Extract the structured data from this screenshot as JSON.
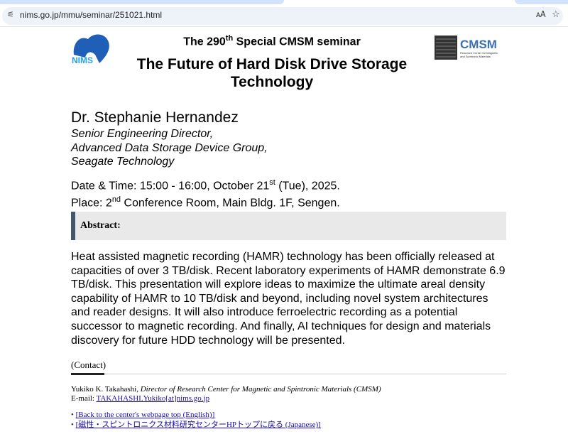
{
  "browser": {
    "url": "nims.go.jp/mmu/seminar/251021.html",
    "icons": [
      "tune-icon",
      "translate-icon",
      "star-icon"
    ]
  },
  "header": {
    "logo_left": "NIMS",
    "logo_right": "CMSM",
    "logo_right_sub": "Research Center for Magnetic and Spintronic Materials",
    "sub_pre": "The 290",
    "sub_sup": "th",
    "sub_post": " Special CMSM seminar",
    "title": "The Future of Hard Disk Drive Storage Technology"
  },
  "speaker": {
    "name": "Dr. Stephanie Hernandez",
    "affiliation": [
      "Senior Engineering Director,",
      "Advanced Data Storage Device Group,",
      "Seagate Technology"
    ]
  },
  "event": {
    "date_pre": "Date & Time: 15:00 - 16:00, October 21",
    "date_sup": "st",
    "date_post": " (Tue), 2025.",
    "place_pre": "Place: 2",
    "place_sup": "nd",
    "place_post": " Conference Room, Main Bldg. 1F, Sengen."
  },
  "abstract": {
    "heading": "Abstract:",
    "text": "Heat assisted magnetic recording (HAMR) technology has been officially released at capacities of over 3 TB/disk. Recent laboratory experiments of HAMR demonstrate 6.9 TB/disk. This presentation will explore ideas to maximize the ultimate areal density capability of HAMR to 10 TB/disk and beyond, including novel system architectures and reader designs. It will also introduce ferroelectric recording as a potential successor to magnetic recording. And finally, AI techniques for design and materials discovery for future HDD technology will be presented."
  },
  "contact": {
    "heading": "(Contact)",
    "name": "Yukiko K. Takahashi,",
    "role": " Director of Research Center for Magnetic and Spintronic Materials (CMSM)",
    "email_label": "E-mail: ",
    "email": "TAKAHASHI.Yukiko[at]nims.go.jp"
  },
  "links": [
    "[Back to the center's webpage top (English)]",
    "[磁性・スピントロニクス材料研究センターHPトップに戻る (Japanese)]"
  ]
}
